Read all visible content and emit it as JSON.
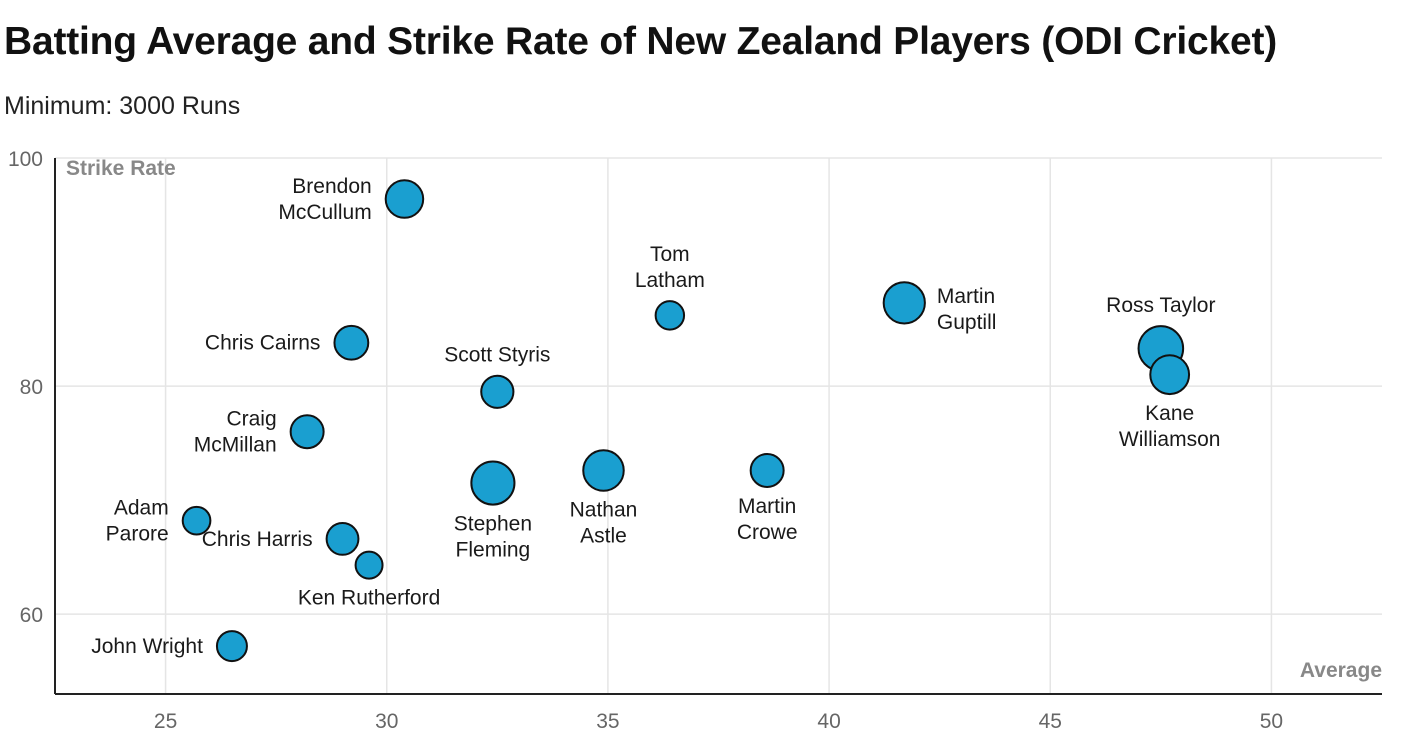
{
  "title": "Batting Average and Strike Rate of New Zealand Players (ODI Cricket)",
  "subtitle": "Minimum: 3000 Runs",
  "chart_data": {
    "type": "scatter",
    "title": "Batting Average and Strike Rate of New Zealand Players (ODI Cricket)",
    "subtitle": "Minimum: 3000 Runs",
    "xlabel": "Average",
    "ylabel": "Strike Rate",
    "xlim": [
      22.5,
      52.5
    ],
    "ylim": [
      53,
      100
    ],
    "xticks": [
      25,
      30,
      35,
      40,
      45,
      50
    ],
    "yticks": [
      60,
      80,
      100
    ],
    "grid": true,
    "point_color": "#1a9fd0",
    "points": [
      {
        "name": "Brendon McCullum",
        "label_lines": [
          "Brendon",
          "McCullum"
        ],
        "x": 30.4,
        "y": 96.4,
        "runs": 6083,
        "label_pos": "left"
      },
      {
        "name": "Tom Latham",
        "label_lines": [
          "Tom",
          "Latham"
        ],
        "x": 36.4,
        "y": 86.2,
        "runs": 3500,
        "label_pos": "top"
      },
      {
        "name": "Martin Guptill",
        "label_lines": [
          "Martin",
          "Guptill"
        ],
        "x": 41.7,
        "y": 87.3,
        "runs": 7346,
        "label_pos": "right"
      },
      {
        "name": "Ross Taylor",
        "label_lines": [
          "Ross Taylor"
        ],
        "x": 47.5,
        "y": 83.3,
        "runs": 8600,
        "label_pos": "top"
      },
      {
        "name": "Kane Williamson",
        "label_lines": [
          "Kane",
          "Williamson"
        ],
        "x": 47.7,
        "y": 81.0,
        "runs": 6500,
        "label_pos": "bottom"
      },
      {
        "name": "Chris Cairns",
        "label_lines": [
          "Chris Cairns"
        ],
        "x": 29.2,
        "y": 83.8,
        "runs": 4950,
        "label_pos": "left"
      },
      {
        "name": "Scott Styris",
        "label_lines": [
          "Scott Styris"
        ],
        "x": 32.5,
        "y": 79.5,
        "runs": 4483,
        "label_pos": "top"
      },
      {
        "name": "Craig McMillan",
        "label_lines": [
          "Craig",
          "McMillan"
        ],
        "x": 28.2,
        "y": 76.0,
        "runs": 4707,
        "label_pos": "left"
      },
      {
        "name": "Stephen Fleming",
        "label_lines": [
          "Stephen",
          "Fleming"
        ],
        "x": 32.4,
        "y": 71.5,
        "runs": 8037,
        "label_pos": "bottom"
      },
      {
        "name": "Nathan Astle",
        "label_lines": [
          "Nathan",
          "Astle"
        ],
        "x": 34.9,
        "y": 72.6,
        "runs": 7090,
        "label_pos": "bottom"
      },
      {
        "name": "Martin Crowe",
        "label_lines": [
          "Martin",
          "Crowe"
        ],
        "x": 38.6,
        "y": 72.6,
        "runs": 4704,
        "label_pos": "bottom"
      },
      {
        "name": "Adam Parore",
        "label_lines": [
          "Adam",
          "Parore"
        ],
        "x": 25.7,
        "y": 68.2,
        "runs": 3314,
        "label_pos": "left"
      },
      {
        "name": "Chris Harris",
        "label_lines": [
          "Chris Harris"
        ],
        "x": 29.0,
        "y": 66.6,
        "runs": 4379,
        "label_pos": "left"
      },
      {
        "name": "Ken Rutherford",
        "label_lines": [
          "Ken Rutherford"
        ],
        "x": 29.6,
        "y": 64.3,
        "runs": 3143,
        "label_pos": "bottom"
      },
      {
        "name": "John Wright",
        "label_lines": [
          "John Wright"
        ],
        "x": 26.5,
        "y": 57.2,
        "runs": 3891,
        "label_pos": "left"
      }
    ]
  }
}
